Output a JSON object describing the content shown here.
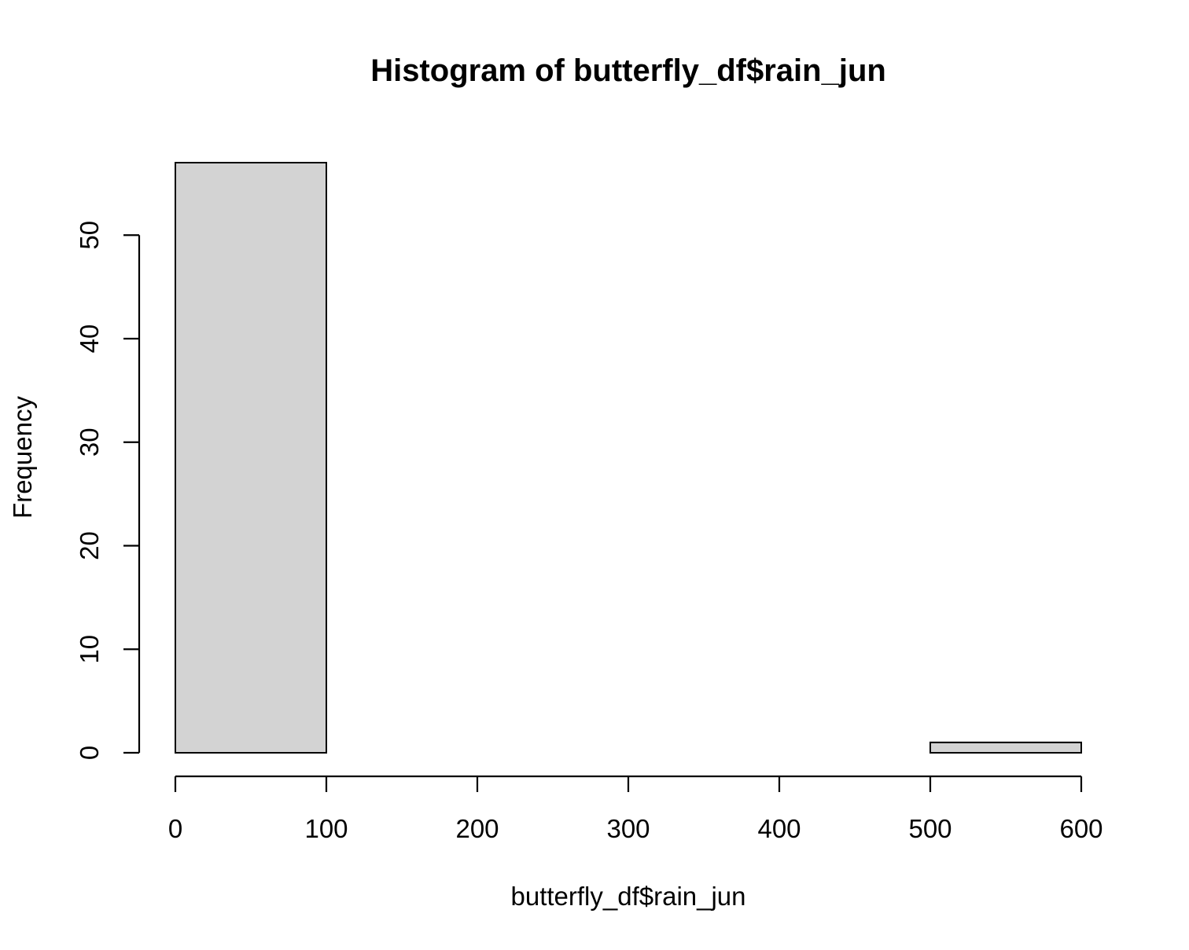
{
  "chart_data": {
    "type": "bar",
    "subtype": "histogram",
    "title": "Histogram of butterfly_df$rain_jun",
    "xlabel": "butterfly_df$rain_jun",
    "ylabel": "Frequency",
    "bins": [
      {
        "start": 0,
        "end": 100,
        "count": 57
      },
      {
        "start": 100,
        "end": 200,
        "count": 0
      },
      {
        "start": 200,
        "end": 300,
        "count": 0
      },
      {
        "start": 300,
        "end": 400,
        "count": 0
      },
      {
        "start": 400,
        "end": 500,
        "count": 0
      },
      {
        "start": 500,
        "end": 600,
        "count": 1
      }
    ],
    "xlim": [
      0,
      600
    ],
    "ylim": [
      0,
      57
    ],
    "x_ticks": [
      0,
      100,
      200,
      300,
      400,
      500,
      600
    ],
    "y_ticks": [
      0,
      10,
      20,
      30,
      40,
      50
    ],
    "grid": false,
    "legend": "none",
    "colors": {
      "bar_fill": "#d3d3d3",
      "bar_stroke": "#000000",
      "axis": "#000000",
      "background": "#ffffff"
    }
  }
}
